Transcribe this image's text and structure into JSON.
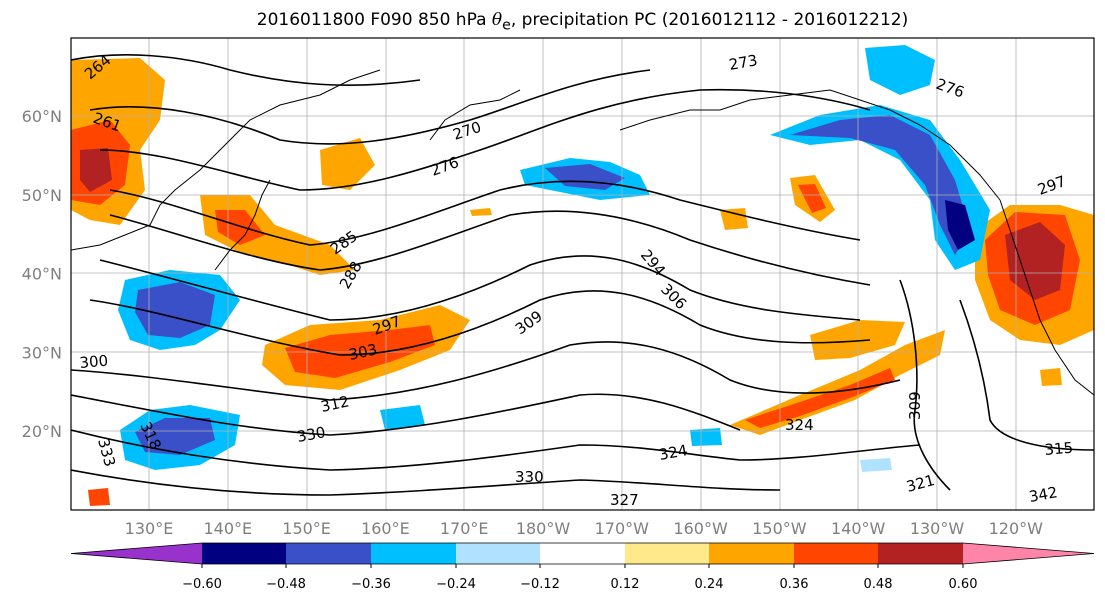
{
  "title_prefix": "2016011800 F090 850 hPa ",
  "title_symbol": "θ",
  "title_sub": "e",
  "title_suffix": ", precipitation PC (2016012112 - 2016012212)",
  "lon_labels": [
    "130°E",
    "140°E",
    "150°E",
    "160°E",
    "170°E",
    "180°W",
    "170°W",
    "160°W",
    "150°W",
    "140°W",
    "130°W",
    "120°W"
  ],
  "lat_labels": [
    "60°N",
    "50°N",
    "40°N",
    "30°N",
    "20°N"
  ],
  "colorbar": {
    "colors": [
      "#9932cc",
      "#000080",
      "#3a50c8",
      "#00bfff",
      "#b0e2ff",
      "#ffffff",
      "#ffe98a",
      "#ffa500",
      "#ff4500",
      "#b22222",
      "#ff85a8"
    ],
    "tick_labels": [
      "−0.60",
      "−0.48",
      "−0.36",
      "−0.24",
      "−0.12",
      "0.12",
      "0.24",
      "0.36",
      "0.48",
      "0.60"
    ]
  },
  "contour_labels": [
    "264",
    "261",
    "270",
    "276",
    "285",
    "288",
    "297",
    "303",
    "312",
    "318",
    "330",
    "333",
    "309",
    "294",
    "306",
    "300",
    "324",
    "327",
    "330",
    "324",
    "321",
    "309",
    "315",
    "342",
    "273",
    "276",
    "297"
  ]
}
